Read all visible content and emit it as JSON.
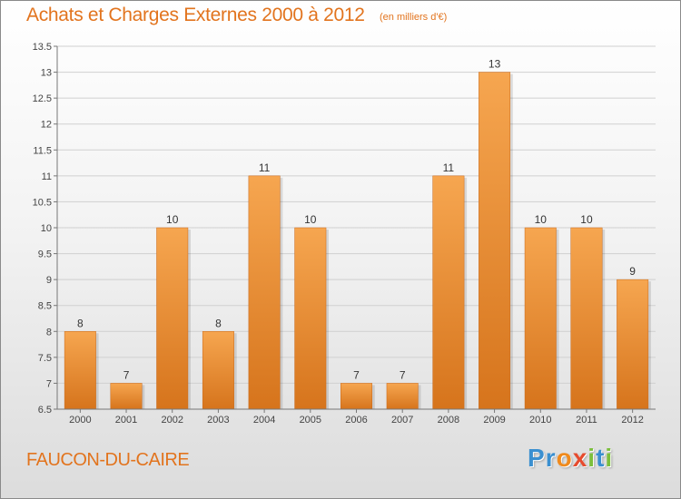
{
  "header": {
    "title": "Achats et Charges Externes 2000 à 2012",
    "subtitle": "(en milliers d'€)"
  },
  "footer": {
    "commune": "FAUCON-DU-CAIRE",
    "logo_letters": [
      {
        "char": "P",
        "color": "#3a8fd0"
      },
      {
        "char": "r",
        "color": "#3a8fd0"
      },
      {
        "char": "o",
        "color": "#f08a1c"
      },
      {
        "char": "x",
        "color": "#e64b2e"
      },
      {
        "char": "i",
        "color": "#7cbf3c"
      },
      {
        "char": "t",
        "color": "#3a8fd0"
      },
      {
        "char": "i",
        "color": "#7cbf3c"
      }
    ]
  },
  "chart_data": {
    "type": "bar",
    "title": "Achats et Charges Externes 2000 à 2012",
    "subtitle": "(en milliers d'€)",
    "categories": [
      "2000",
      "2001",
      "2002",
      "2003",
      "2004",
      "2005",
      "2006",
      "2007",
      "2008",
      "2009",
      "2010",
      "2011",
      "2012"
    ],
    "values": [
      8,
      7,
      10,
      8,
      11,
      10,
      7,
      7,
      11,
      13,
      10,
      10,
      9
    ],
    "data_labels": [
      "8",
      "7",
      "10",
      "8",
      "11",
      "10",
      "7",
      "7",
      "11",
      "13",
      "10",
      "10",
      "9"
    ],
    "yticks": [
      6.5,
      7,
      7.5,
      8,
      8.5,
      9,
      9.5,
      10,
      10.5,
      11,
      11.5,
      12,
      12.5,
      13,
      13.5
    ],
    "ylim": [
      6.5,
      13.5
    ],
    "xlabel": "",
    "ylabel": "",
    "grid": "horizontal",
    "bar_color_top": "#f6a650",
    "bar_color_bottom": "#d6741c"
  }
}
